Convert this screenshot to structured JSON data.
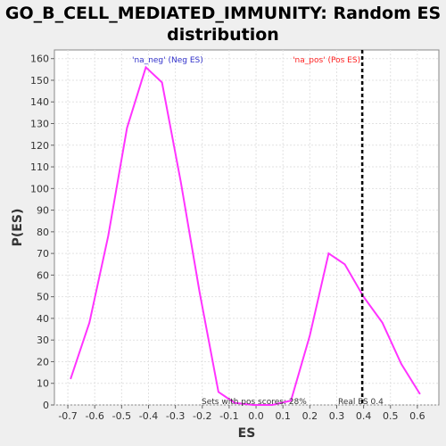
{
  "title_line1": "GO_B_CELL_MEDIATED_IMMUNITY: Random ES",
  "title_line2": "distribution",
  "chart_data": {
    "type": "line",
    "title": "GO_B_CELL_MEDIATED_IMMUNITY: Random ES distribution",
    "xlabel": "ES",
    "ylabel": "P(ES)",
    "xlim": [
      -0.75,
      0.68
    ],
    "ylim": [
      0,
      164
    ],
    "grid": true,
    "x_ticks": [
      -0.7,
      -0.6,
      -0.5,
      -0.4,
      -0.3,
      -0.2,
      -0.1,
      0.0,
      0.1,
      0.2,
      0.3,
      0.4,
      0.5,
      0.6
    ],
    "x_tick_labels": [
      "-0.7",
      "-0.6",
      "-0.5",
      "-0.4",
      "-0.3",
      "-0.2",
      "-0.1",
      "0.0",
      "0.1",
      "0.2",
      "0.3",
      "0.4",
      "0.5",
      "0.6"
    ],
    "y_ticks": [
      0,
      10,
      20,
      30,
      40,
      50,
      60,
      70,
      80,
      90,
      100,
      110,
      120,
      130,
      140,
      150,
      160
    ],
    "y_tick_labels": [
      "0",
      "10",
      "20",
      "30",
      "40",
      "50",
      "60",
      "70",
      "80",
      "90",
      "100",
      "110",
      "120",
      "130",
      "140",
      "150",
      "160"
    ],
    "series": [
      {
        "name": "random ES distribution",
        "color": "#ff33ff",
        "x": [
          -0.69,
          -0.62,
          -0.55,
          -0.48,
          -0.41,
          -0.35,
          -0.28,
          -0.21,
          -0.14,
          -0.08,
          -0.01,
          0.06,
          0.13,
          0.2,
          0.27,
          0.33,
          0.4,
          0.47,
          0.54,
          0.61
        ],
        "y": [
          12,
          38,
          78,
          128,
          156,
          149,
          103,
          52,
          6,
          1,
          0,
          0,
          2,
          32,
          70,
          65,
          50,
          38,
          19,
          5
        ]
      }
    ],
    "real_es": {
      "value": 0.395,
      "label": "Real ES 0.4",
      "color": "#000000"
    },
    "annotations": {
      "neg_label": "'na_neg' (Neg ES)",
      "neg_color": "#3333cc",
      "pos_label": "'na_pos' (Pos ES)",
      "pos_color": "#ff2222",
      "sets_label": "Sets with pos scores: 28%"
    },
    "background": "#ffffff",
    "grid_color": "#e2e2e2"
  }
}
